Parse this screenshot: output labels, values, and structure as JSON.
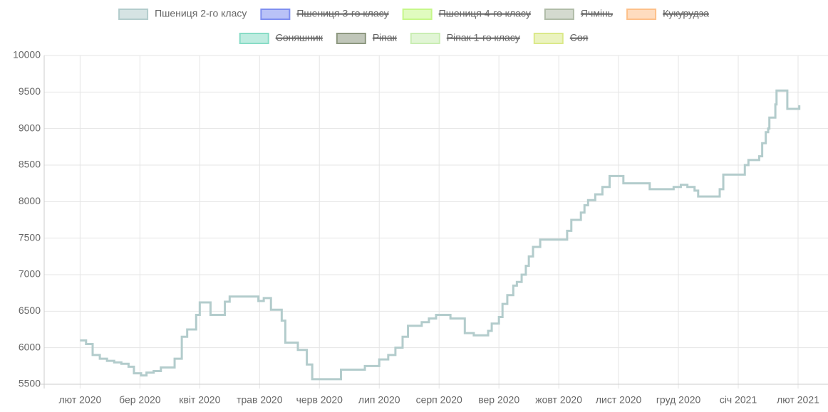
{
  "chart_data": {
    "type": "line",
    "stepped": true,
    "series": [
      {
        "name": "Пшениця 2-го класу",
        "color": "#b3cccc",
        "x": [
          0,
          0.1,
          0.21,
          0.33,
          0.45,
          0.57,
          0.69,
          0.81,
          0.9,
          1.02,
          1.11,
          1.23,
          1.35,
          1.58,
          1.7,
          1.79,
          1.94,
          2.0,
          2.18,
          2.42,
          2.5,
          2.98,
          3.07,
          3.19,
          3.37,
          3.43,
          3.64,
          3.79,
          3.88,
          4.36,
          4.76,
          5.0,
          5.15,
          5.27,
          5.39,
          5.48,
          5.71,
          5.83,
          5.95,
          6.19,
          6.43,
          6.58,
          6.82,
          6.88,
          7.0,
          7.06,
          7.14,
          7.24,
          7.3,
          7.38,
          7.45,
          7.5,
          7.57,
          7.69,
          8.14,
          8.21,
          8.37,
          8.43,
          8.49,
          8.61,
          8.73,
          8.85,
          9.08,
          9.52,
          9.92,
          10.04,
          10.15,
          10.27,
          10.33,
          10.69,
          10.75,
          11.11,
          11.17,
          11.35,
          11.4,
          11.46,
          11.5,
          11.52,
          11.62,
          11.64,
          11.82,
          12.02
        ],
        "values": [
          6100,
          6050,
          5900,
          5850,
          5820,
          5800,
          5780,
          5740,
          5650,
          5620,
          5660,
          5680,
          5730,
          5850,
          6150,
          6250,
          6450,
          6620,
          6450,
          6630,
          6700,
          6640,
          6680,
          6520,
          6370,
          6070,
          5970,
          5770,
          5570,
          5700,
          5750,
          5840,
          5900,
          6000,
          6150,
          6300,
          6350,
          6400,
          6450,
          6400,
          6200,
          6170,
          6230,
          6330,
          6420,
          6600,
          6720,
          6850,
          6900,
          7000,
          7120,
          7250,
          7380,
          7480,
          7600,
          7750,
          7850,
          7950,
          8020,
          8100,
          8200,
          8350,
          8250,
          8170,
          8200,
          8230,
          8200,
          8150,
          8070,
          8170,
          8370,
          8500,
          8570,
          8620,
          8800,
          8950,
          9000,
          9150,
          9330,
          9520,
          9270,
          9320
        ]
      },
      {
        "name": "Пшениця 3-го класу",
        "color": "#7f8ff0",
        "hidden": true
      },
      {
        "name": "Пшениця 4-го класу",
        "color": "#c6f78a",
        "hidden": true
      },
      {
        "name": "Ячмінь",
        "color": "#b0bca8",
        "hidden": true
      },
      {
        "name": "Кукурудза",
        "color": "#fdc08a",
        "hidden": true
      },
      {
        "name": "Соняшник",
        "color": "#88dcc6",
        "hidden": true
      },
      {
        "name": "Ріпак",
        "color": "#8d9880",
        "hidden": true
      },
      {
        "name": "Ріпак 1-го класу",
        "color": "#c9edb3",
        "hidden": true
      },
      {
        "name": "Соя",
        "color": "#dbe98a",
        "hidden": true
      }
    ],
    "xlim": [
      -0.6,
      12.5
    ],
    "xticks": [
      {
        "value": 0,
        "label": "лют 2020"
      },
      {
        "value": 1,
        "label": "бер 2020"
      },
      {
        "value": 2,
        "label": "квіт 2020"
      },
      {
        "value": 3,
        "label": "трав 2020"
      },
      {
        "value": 4,
        "label": "черв 2020"
      },
      {
        "value": 5,
        "label": "лип 2020"
      },
      {
        "value": 6,
        "label": "серп 2020"
      },
      {
        "value": 7,
        "label": "вер 2020"
      },
      {
        "value": 8,
        "label": "жовт 2020"
      },
      {
        "value": 9,
        "label": "лист 2020"
      },
      {
        "value": 10,
        "label": "груд 2020"
      },
      {
        "value": 11,
        "label": "січ 2021"
      },
      {
        "value": 12,
        "label": "лют 2021"
      }
    ],
    "ylim": [
      5500,
      10000
    ],
    "yticks": [
      5500,
      6000,
      6500,
      7000,
      7500,
      8000,
      8500,
      9000,
      9500,
      10000
    ],
    "grid": true,
    "legend": "top"
  }
}
